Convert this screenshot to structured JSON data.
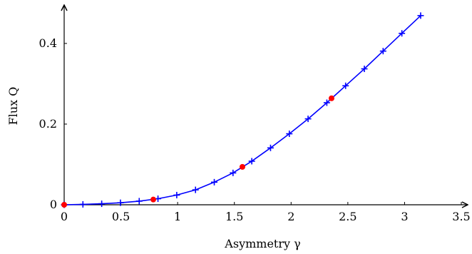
{
  "chart_data": {
    "type": "line",
    "title": "",
    "xlabel": "Asymmetry γ",
    "ylabel": "Flux Q",
    "xlim": [
      0,
      3.5
    ],
    "ylim": [
      0,
      0.49
    ],
    "x_ticks": [
      0,
      0.5,
      1,
      1.5,
      2,
      2.5,
      3,
      3.5
    ],
    "x_tick_labels": [
      "0",
      "0.5",
      "1",
      "1.5",
      "2",
      "2.5",
      "3",
      "3.5"
    ],
    "y_ticks": [
      0,
      0.2,
      0.4
    ],
    "y_tick_labels": [
      "0",
      "0.2",
      "0.4"
    ],
    "grid": false,
    "legend": "none",
    "series": [
      {
        "color": "#0000ff",
        "marker": "plus",
        "x": [
          0,
          0.1653,
          0.3307,
          0.496,
          0.6614,
          0.8267,
          0.9921,
          1.1574,
          1.3228,
          1.4881,
          1.6535,
          1.8188,
          1.9842,
          2.1495,
          2.3149,
          2.4802,
          2.6456,
          2.8109,
          2.9762,
          3.1416
        ],
        "y": [
          0,
          0.001,
          0.0025,
          0.005,
          0.009,
          0.015,
          0.024,
          0.037,
          0.056,
          0.079,
          0.108,
          0.141,
          0.176,
          0.213,
          0.253,
          0.295,
          0.337,
          0.381,
          0.425,
          0.469
        ]
      },
      {
        "color": "#ff0000",
        "marker": "circle",
        "x": [
          0,
          0.7854,
          1.5708,
          2.3562
        ],
        "y": [
          0,
          0.013,
          0.094,
          0.264
        ]
      }
    ]
  }
}
